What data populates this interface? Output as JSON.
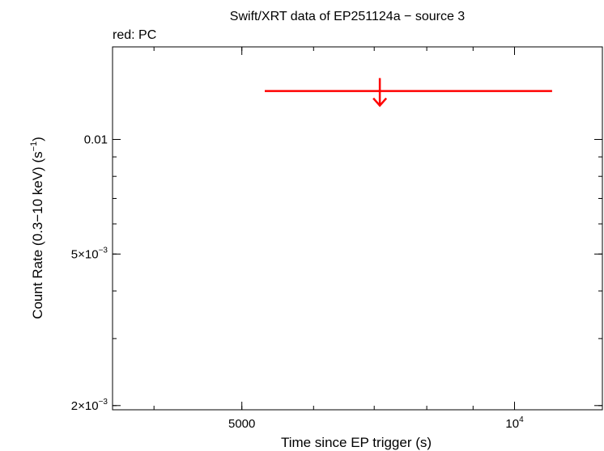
{
  "chart_data": {
    "type": "scatter",
    "title": "Swift/XRT data of EP251124a − source 3",
    "subtitle": "red: PC",
    "xlabel": "Time since EP trigger (s)",
    "ylabel": "Count Rate (0.3−10 keV) (s",
    "ylabel_sup": "−1",
    "ylabel_tail": ")",
    "xscale": "log",
    "yscale": "log",
    "xlim": [
      3600,
      12500
    ],
    "ylim": [
      0.00195,
      0.0175
    ],
    "x_ticks": [
      {
        "value": 5000,
        "base": "5000",
        "sup": ""
      },
      {
        "value": 10000,
        "base": "10",
        "sup": "4"
      }
    ],
    "y_ticks": [
      {
        "value": 0.01,
        "base": "0.01",
        "sup": ""
      },
      {
        "value": 0.005,
        "base": "5×10",
        "sup": "−3"
      },
      {
        "value": 0.002,
        "base": "2×10",
        "sup": "−3"
      }
    ],
    "series": [
      {
        "name": "PC",
        "color": "#ff0000",
        "points": [
          {
            "x": 7100,
            "x_lo": 5300,
            "x_hi": 11000,
            "y": 0.0134,
            "upper_limit": true
          }
        ]
      }
    ]
  }
}
